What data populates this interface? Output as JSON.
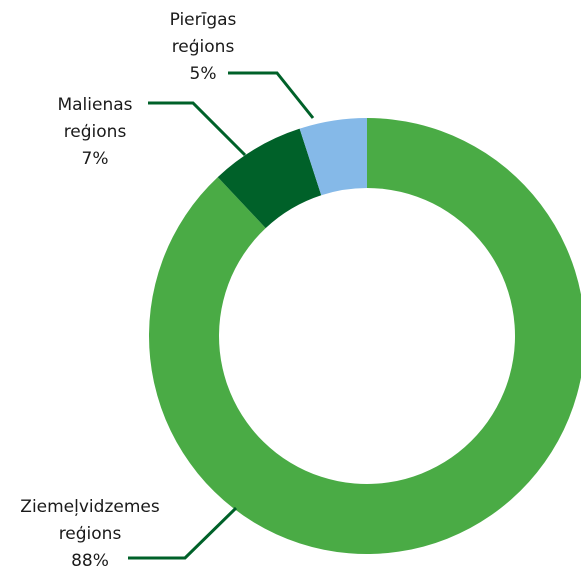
{
  "chart_data": {
    "type": "donut",
    "categories": [
      "Ziemeļvidzemes reģions",
      "Malienas reģions",
      "Pierīgas reģions"
    ],
    "values": [
      88,
      7,
      5
    ],
    "value_labels": [
      "88%",
      "7%",
      "5%"
    ],
    "colors": [
      "#4aab45",
      "#006129",
      "#85b9e8"
    ]
  }
}
